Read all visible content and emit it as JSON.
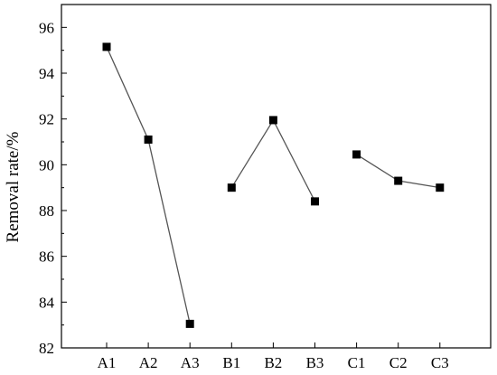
{
  "chart_data": {
    "type": "line",
    "title": "",
    "xlabel": "",
    "ylabel": "Removal rate/%",
    "ylim": [
      82,
      97
    ],
    "yticks": [
      82,
      84,
      86,
      88,
      90,
      92,
      94,
      96
    ],
    "categories": [
      "A1",
      "A2",
      "A3",
      "B1",
      "B2",
      "B3",
      "C1",
      "C2",
      "C3"
    ],
    "series": [
      {
        "group": "A",
        "x": [
          "A1",
          "A2",
          "A3"
        ],
        "values": [
          95.15,
          91.1,
          83.05
        ]
      },
      {
        "group": "B",
        "x": [
          "B1",
          "B2",
          "B3"
        ],
        "values": [
          89.0,
          91.95,
          88.4
        ]
      },
      {
        "group": "C",
        "x": [
          "C1",
          "C2",
          "C3"
        ],
        "values": [
          90.45,
          89.3,
          89.0
        ]
      }
    ],
    "marker": "square",
    "grid": false,
    "legend": "none",
    "colors": {
      "line": "#555555",
      "marker": "#000000",
      "axis": "#000000"
    }
  }
}
